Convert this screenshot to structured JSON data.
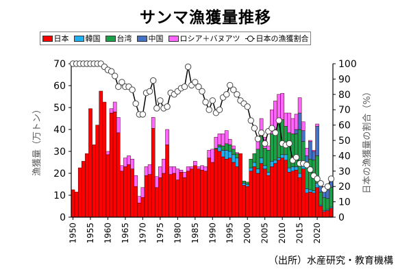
{
  "title": "サンマ漁獲量推移",
  "source": "（出所）水産研究・教育機構",
  "legend": [
    {
      "label": "日本",
      "color": "#ff0000",
      "kind": "bar"
    },
    {
      "label": "韓国",
      "color": "#1fb0f0",
      "kind": "bar"
    },
    {
      "label": "台湾",
      "color": "#1aa24a",
      "kind": "bar"
    },
    {
      "label": "中国",
      "color": "#4472c4",
      "kind": "bar"
    },
    {
      "label": "ロシア＋バヌアツ",
      "color": "#ff66ff",
      "kind": "bar"
    },
    {
      "label": "日本の漁獲割合",
      "color": "#000000",
      "kind": "line"
    }
  ],
  "chart_data": {
    "type": "bar",
    "stacked": true,
    "title": "サンマ漁獲量推移",
    "xlabel": "",
    "ylabel": "漁獲量（万トン）",
    "y2label": "日本の漁獲量の割合（%）",
    "ylim": [
      0,
      70
    ],
    "y2lim": [
      0,
      100
    ],
    "yticks": [
      0,
      10,
      20,
      30,
      40,
      50,
      60,
      70
    ],
    "y2ticks": [
      0,
      10,
      20,
      30,
      40,
      50,
      60,
      70,
      80,
      90,
      100
    ],
    "xtick_labels": [
      "1950",
      "1955",
      "1960",
      "1965",
      "1970",
      "1975",
      "1980",
      "1985",
      "1990",
      "1995",
      "2000",
      "2005",
      "2010",
      "2015",
      "2020"
    ],
    "legend_position": "top",
    "grid": false,
    "x": [
      1950,
      1951,
      1952,
      1953,
      1954,
      1955,
      1956,
      1957,
      1958,
      1959,
      1960,
      1961,
      1962,
      1963,
      1964,
      1965,
      1966,
      1967,
      1968,
      1969,
      1970,
      1971,
      1972,
      1973,
      1974,
      1975,
      1976,
      1977,
      1978,
      1979,
      1980,
      1981,
      1982,
      1983,
      1984,
      1985,
      1986,
      1987,
      1988,
      1989,
      1990,
      1991,
      1992,
      1993,
      1994,
      1995,
      1996,
      1997,
      1998,
      1999,
      2000,
      2001,
      2002,
      2003,
      2004,
      2005,
      2006,
      2007,
      2008,
      2009,
      2010,
      2011,
      2012,
      2013,
      2014,
      2015,
      2016,
      2017,
      2018,
      2019,
      2020,
      2021,
      2022,
      2023,
      2024
    ],
    "series": [
      {
        "name": "日本",
        "axis": "left",
        "values": [
          12.5,
          11.5,
          22.5,
          25.5,
          29,
          49.5,
          33,
          42,
          57.5,
          52.5,
          28.5,
          47.5,
          48,
          38.5,
          21,
          23,
          24,
          22,
          14,
          6.5,
          9,
          19,
          19.5,
          40.5,
          13.5,
          18,
          20,
          33,
          19.5,
          20,
          17,
          20.5,
          18,
          21,
          22,
          23.5,
          22,
          21.5,
          21,
          27,
          25,
          31,
          30,
          27.5,
          26.5,
          27,
          25,
          23,
          29,
          14.5,
          14,
          21,
          23,
          20,
          24.5,
          22,
          19,
          23,
          24.5,
          26,
          27,
          26,
          20.5,
          21,
          21.5,
          18,
          22,
          11,
          11.5,
          11,
          13.5,
          5,
          2.5,
          3,
          4
        ]
      },
      {
        "name": "韓国",
        "axis": "left",
        "values": [
          0,
          0,
          0,
          0,
          0,
          0,
          0,
          0,
          0,
          0,
          0,
          0,
          0,
          0,
          0,
          0,
          0,
          0,
          0,
          0,
          0,
          0,
          0,
          0,
          0,
          0,
          0,
          0,
          0,
          0,
          0,
          0,
          0,
          0,
          0,
          0,
          0,
          0,
          0,
          0,
          0,
          0,
          2,
          3,
          4,
          3,
          3.5,
          4,
          0,
          1,
          1,
          1.5,
          2,
          2,
          2.5,
          1.5,
          1.5,
          2.5,
          1.5,
          1,
          1.5,
          2.5,
          2,
          2,
          1.5,
          2,
          1.5,
          2,
          1,
          1,
          2,
          0.5,
          0.5,
          0.5,
          0.5
        ]
      },
      {
        "name": "台湾",
        "axis": "left",
        "values": [
          0,
          0,
          0,
          0,
          0,
          0,
          0,
          0,
          0,
          0,
          0,
          0,
          0,
          0,
          0,
          0,
          0,
          0,
          0,
          0,
          0,
          0,
          0,
          0,
          0,
          0,
          0,
          0,
          0,
          0,
          0,
          0,
          0,
          0,
          0,
          0,
          0,
          0,
          0,
          0,
          0,
          0.5,
          1,
          2,
          3,
          3,
          2.5,
          2,
          0,
          1,
          1,
          4,
          4,
          9,
          10,
          8,
          10,
          12.5,
          14,
          18,
          16,
          13,
          16,
          15,
          15,
          20,
          11,
          10,
          14,
          14,
          12.5,
          6,
          6,
          5,
          9
        ]
      },
      {
        "name": "中国",
        "axis": "left",
        "values": [
          0,
          0,
          0,
          0,
          0,
          0,
          0,
          0,
          0,
          0,
          0,
          0,
          0,
          0,
          0,
          0,
          0,
          0,
          0,
          0,
          0,
          0,
          0,
          0,
          0,
          0,
          0,
          0,
          0,
          0,
          0,
          0,
          0,
          0,
          0,
          0,
          0,
          0,
          0,
          0,
          0,
          0,
          0,
          0,
          0,
          0,
          0,
          0,
          0,
          0,
          0,
          0,
          0,
          0,
          0,
          0,
          0,
          0,
          0,
          0,
          0,
          0,
          0,
          0,
          2,
          7.5,
          5,
          5,
          8,
          4,
          13.5,
          4,
          4,
          4,
          3.5
        ]
      },
      {
        "name": "ロシア＋バヌアツ",
        "axis": "left",
        "values": [
          0,
          0,
          0,
          0,
          0,
          0,
          0,
          0,
          0,
          0,
          1.5,
          2,
          4.5,
          7,
          2.5,
          4,
          4,
          4.5,
          5,
          3,
          4.5,
          4,
          4.5,
          5,
          5,
          5,
          6.5,
          7,
          3.5,
          3,
          5,
          1,
          2.5,
          2,
          1,
          2,
          1,
          2,
          2,
          3.5,
          6,
          5,
          5,
          5.5,
          6,
          2.5,
          1.5,
          0.5,
          0,
          0,
          0,
          0,
          0,
          5,
          8,
          5,
          2,
          11,
          13,
          11,
          12,
          6,
          9,
          7,
          7,
          7,
          4,
          3.5,
          0.5,
          0.5,
          1,
          0,
          0,
          0,
          0
        ]
      },
      {
        "name": "日本の漁獲割合",
        "axis": "right",
        "type": "line",
        "values": [
          100,
          100,
          100,
          100,
          100,
          100,
          100,
          100,
          100,
          98,
          96,
          95,
          92,
          85,
          88,
          85,
          85,
          83,
          74,
          67,
          67,
          81,
          82,
          89,
          71,
          76,
          71,
          72,
          81,
          80,
          82,
          84,
          85,
          98,
          86,
          88,
          85,
          82,
          75,
          70,
          76,
          68,
          70,
          78,
          80,
          86,
          83,
          80,
          76,
          74,
          72,
          63,
          58,
          51,
          55,
          48,
          56,
          58,
          55,
          63,
          48,
          47,
          48,
          37,
          39,
          35,
          35,
          34,
          31,
          27,
          25,
          22,
          18,
          20,
          25
        ]
      }
    ]
  }
}
